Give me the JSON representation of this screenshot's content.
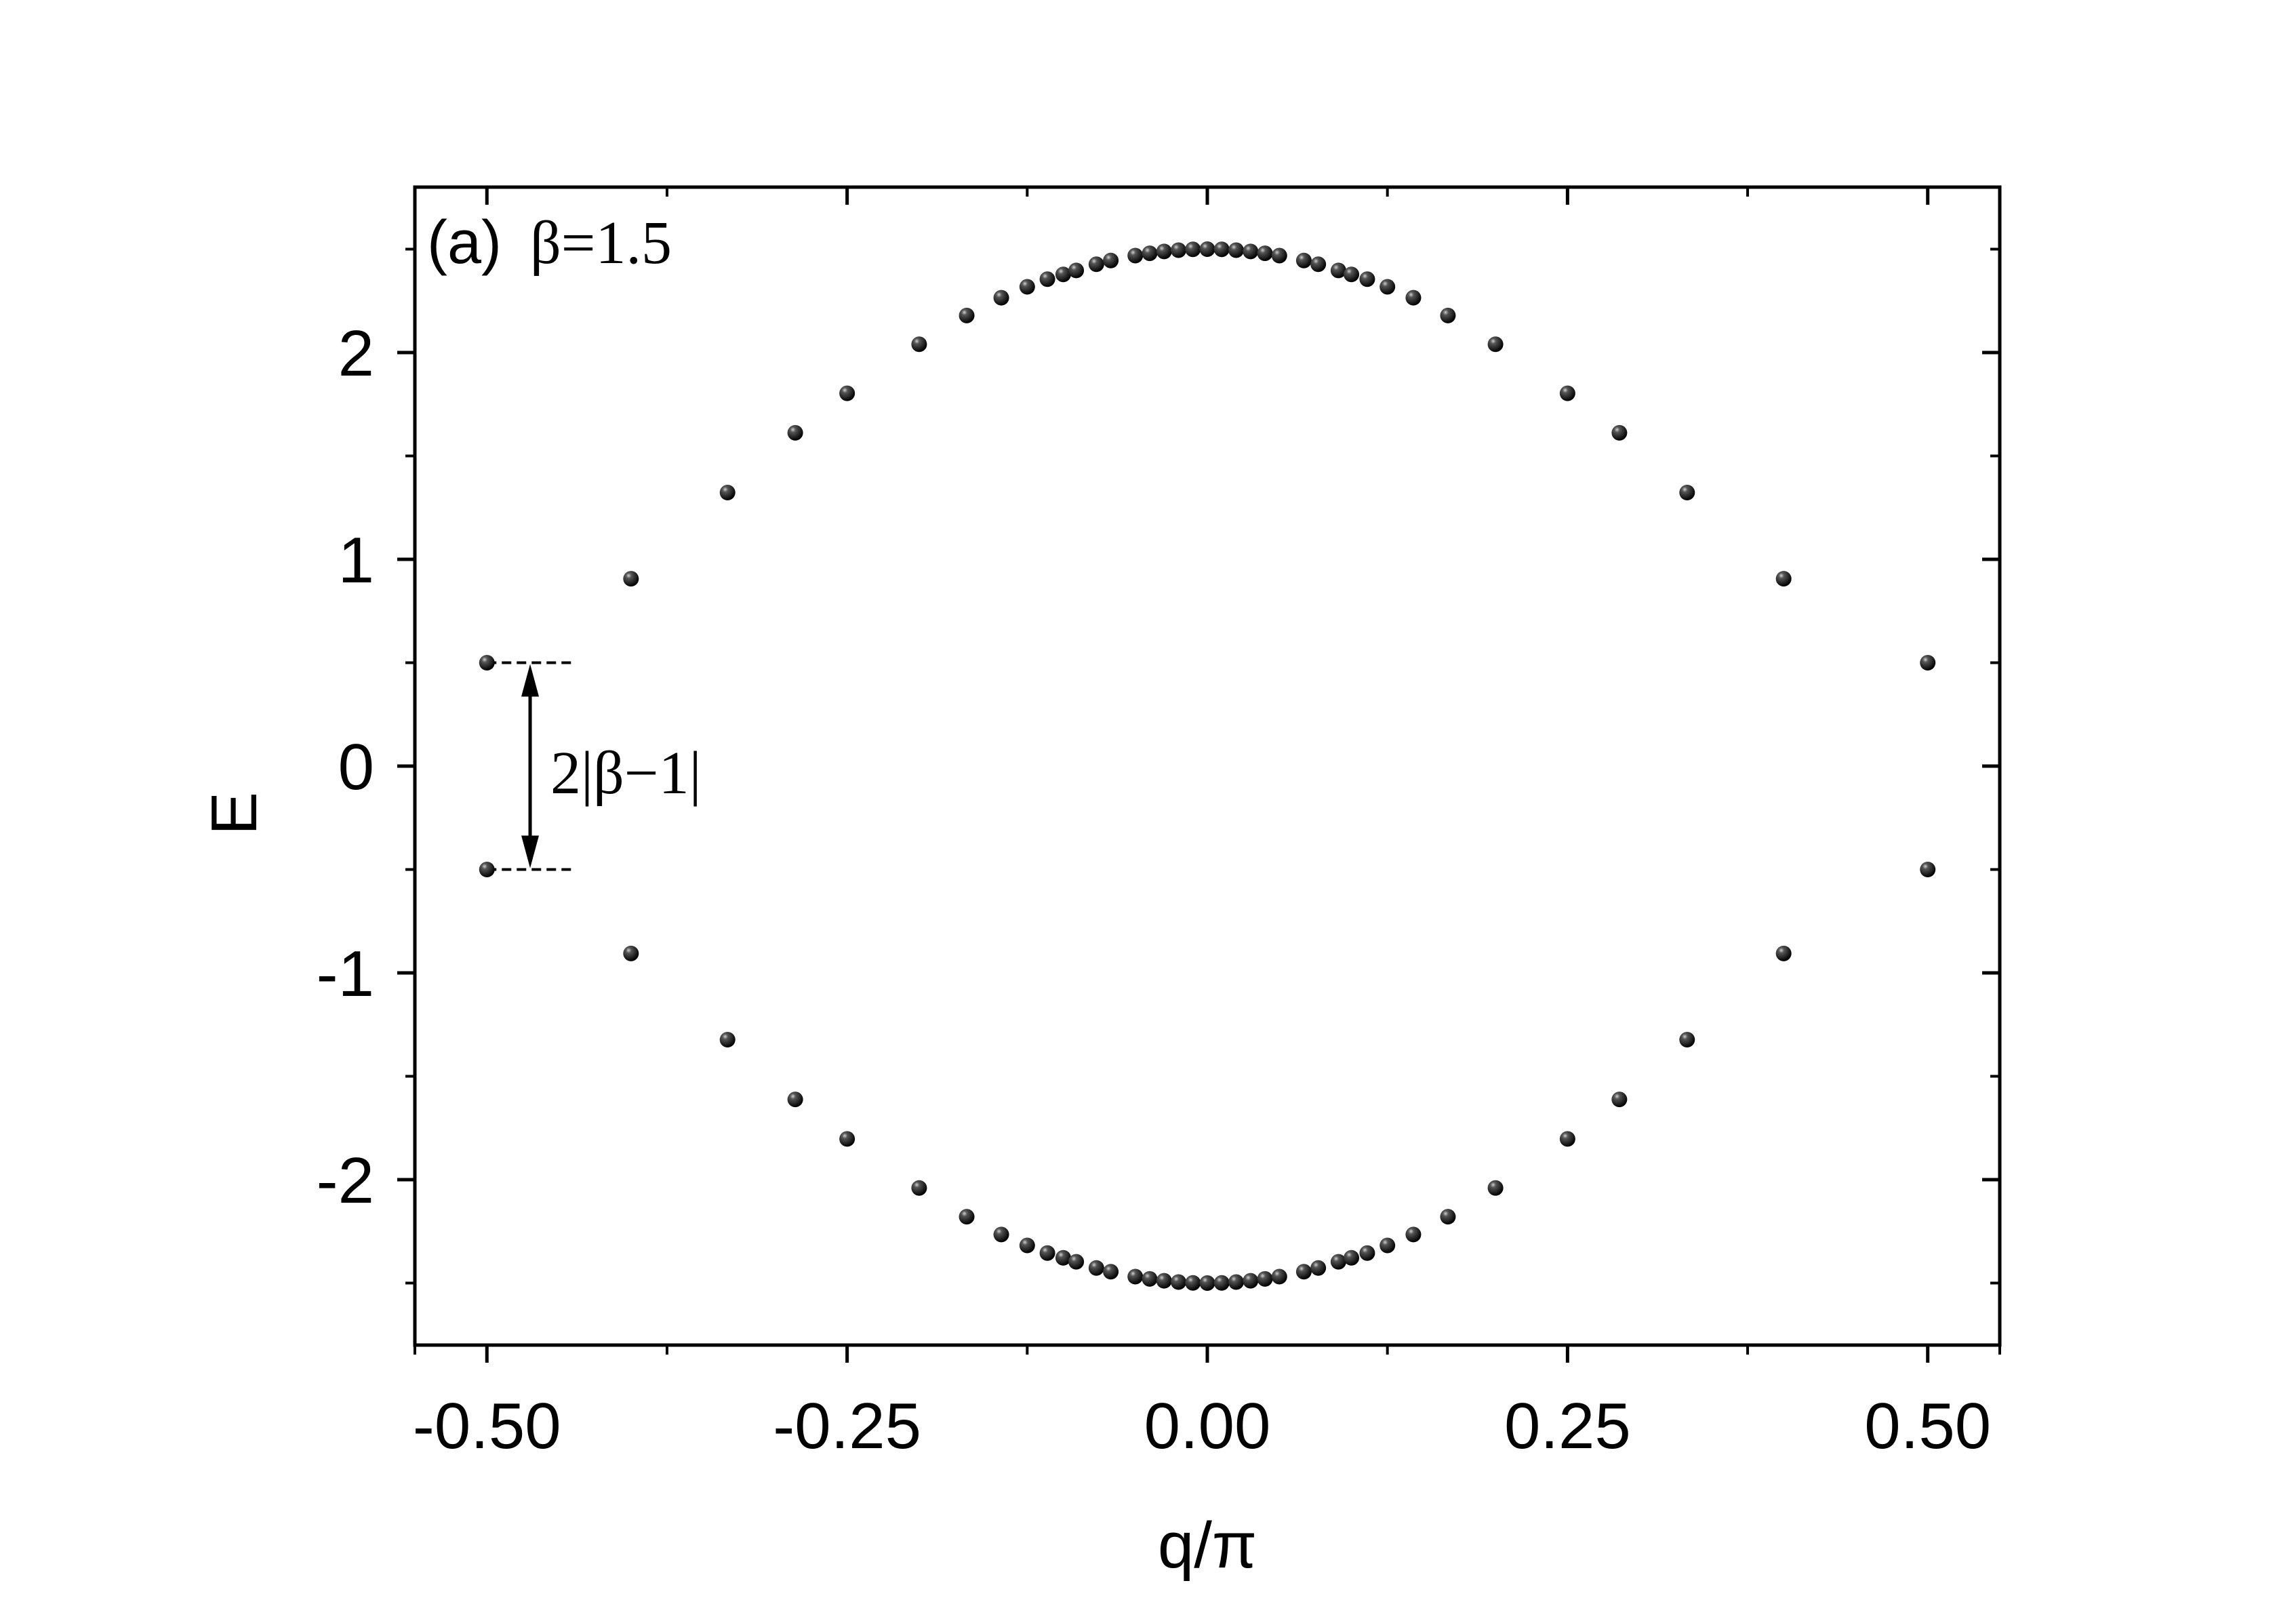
{
  "chart_data": {
    "type": "scatter",
    "xlabel": "q/π",
    "ylabel": "E",
    "xlim": [
      -0.55,
      0.55
    ],
    "ylim": [
      -2.8,
      2.8
    ],
    "xticks": [
      -0.5,
      -0.25,
      0.0,
      0.25,
      0.5
    ],
    "xtick_labels": [
      "-0.50",
      "-0.25",
      "0.00",
      "0.25",
      "0.50"
    ],
    "yticks": [
      -2,
      -1,
      0,
      1,
      2
    ],
    "ytick_labels": [
      "-2",
      "-1",
      "0",
      "1",
      "2"
    ],
    "grid": false,
    "panel_label": "(a)",
    "parameter_label": "β=1.5",
    "gap_annotation": "2|β−1|",
    "gap_marker": {
      "q": -0.47,
      "E_top": 0.5,
      "E_bottom": -0.5,
      "dash_from": -0.5,
      "dash_to": -0.44
    },
    "series": [
      {
        "points": [
          [
            -0.5,
            0.5
          ],
          [
            -0.5,
            -0.5
          ],
          [
            -0.4,
            0.906
          ],
          [
            -0.4,
            -0.906
          ],
          [
            -0.333,
            1.323
          ],
          [
            -0.333,
            -1.323
          ],
          [
            -0.286,
            1.612
          ],
          [
            -0.286,
            -1.612
          ],
          [
            -0.25,
            1.803
          ],
          [
            -0.25,
            -1.803
          ],
          [
            -0.2,
            2.04
          ],
          [
            -0.2,
            -2.04
          ],
          [
            -0.167,
            2.179
          ],
          [
            -0.167,
            -2.179
          ],
          [
            -0.143,
            2.265
          ],
          [
            -0.143,
            -2.265
          ],
          [
            -0.125,
            2.318
          ],
          [
            -0.125,
            -2.318
          ],
          [
            -0.111,
            2.355
          ],
          [
            -0.111,
            -2.355
          ],
          [
            -0.1,
            2.378
          ],
          [
            -0.1,
            -2.378
          ],
          [
            -0.091,
            2.397
          ],
          [
            -0.091,
            -2.397
          ],
          [
            -0.077,
            2.427
          ],
          [
            -0.077,
            -2.427
          ],
          [
            -0.067,
            2.445
          ],
          [
            -0.067,
            -2.445
          ],
          [
            -0.05,
            2.469
          ],
          [
            -0.05,
            -2.469
          ],
          [
            -0.04,
            2.48
          ],
          [
            -0.04,
            -2.48
          ],
          [
            -0.03,
            2.489
          ],
          [
            -0.03,
            -2.489
          ],
          [
            -0.02,
            2.495
          ],
          [
            -0.02,
            -2.495
          ],
          [
            -0.01,
            2.499
          ],
          [
            -0.01,
            -2.499
          ],
          [
            0.0,
            2.5
          ],
          [
            0.0,
            -2.5
          ],
          [
            0.01,
            2.499
          ],
          [
            0.01,
            -2.499
          ],
          [
            0.02,
            2.495
          ],
          [
            0.02,
            -2.495
          ],
          [
            0.03,
            2.489
          ],
          [
            0.03,
            -2.489
          ],
          [
            0.04,
            2.48
          ],
          [
            0.04,
            -2.48
          ],
          [
            0.05,
            2.469
          ],
          [
            0.05,
            -2.469
          ],
          [
            0.067,
            2.445
          ],
          [
            0.067,
            -2.445
          ],
          [
            0.077,
            2.427
          ],
          [
            0.077,
            -2.427
          ],
          [
            0.091,
            2.397
          ],
          [
            0.091,
            -2.397
          ],
          [
            0.1,
            2.378
          ],
          [
            0.1,
            -2.378
          ],
          [
            0.111,
            2.355
          ],
          [
            0.111,
            -2.355
          ],
          [
            0.125,
            2.318
          ],
          [
            0.125,
            -2.318
          ],
          [
            0.143,
            2.265
          ],
          [
            0.143,
            -2.265
          ],
          [
            0.167,
            2.179
          ],
          [
            0.167,
            -2.179
          ],
          [
            0.2,
            2.04
          ],
          [
            0.2,
            -2.04
          ],
          [
            0.25,
            1.803
          ],
          [
            0.25,
            -1.803
          ],
          [
            0.286,
            1.612
          ],
          [
            0.286,
            -1.612
          ],
          [
            0.333,
            1.323
          ],
          [
            0.333,
            -1.323
          ],
          [
            0.4,
            0.906
          ],
          [
            0.4,
            -0.906
          ],
          [
            0.5,
            0.5
          ],
          [
            0.5,
            -0.5
          ]
        ]
      }
    ]
  }
}
